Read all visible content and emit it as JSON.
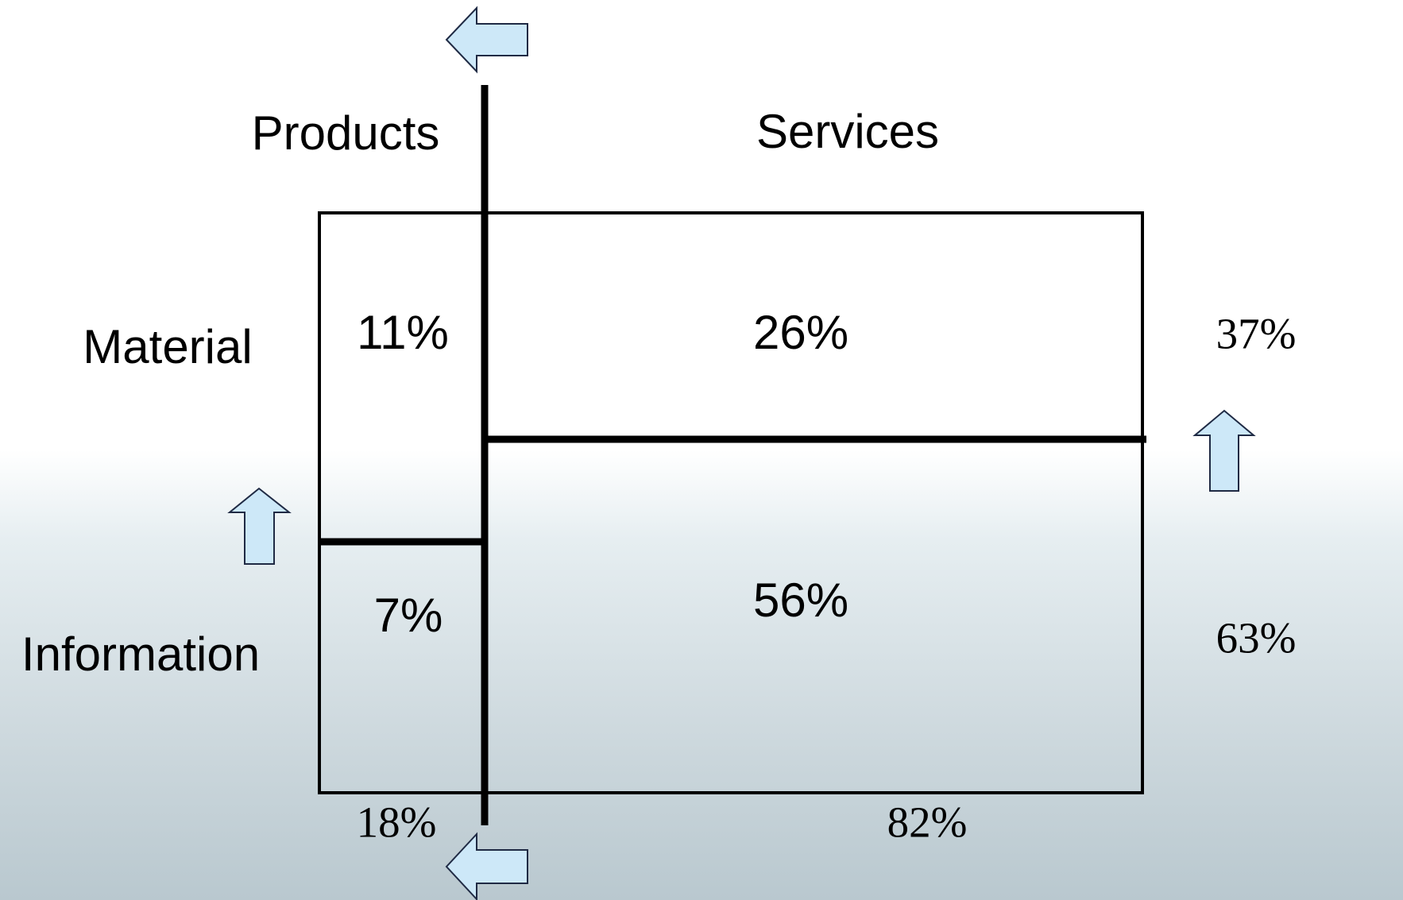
{
  "columns": {
    "left": "Products",
    "right": "Services"
  },
  "rows": {
    "top": "Material",
    "bottom": "Information"
  },
  "cells": {
    "material_products": "11%",
    "material_services": "26%",
    "information_products": "7%",
    "information_services": "56%"
  },
  "row_totals": {
    "material": "37%",
    "information": "63%"
  },
  "column_totals": {
    "products": "18%",
    "services": "82%"
  }
}
